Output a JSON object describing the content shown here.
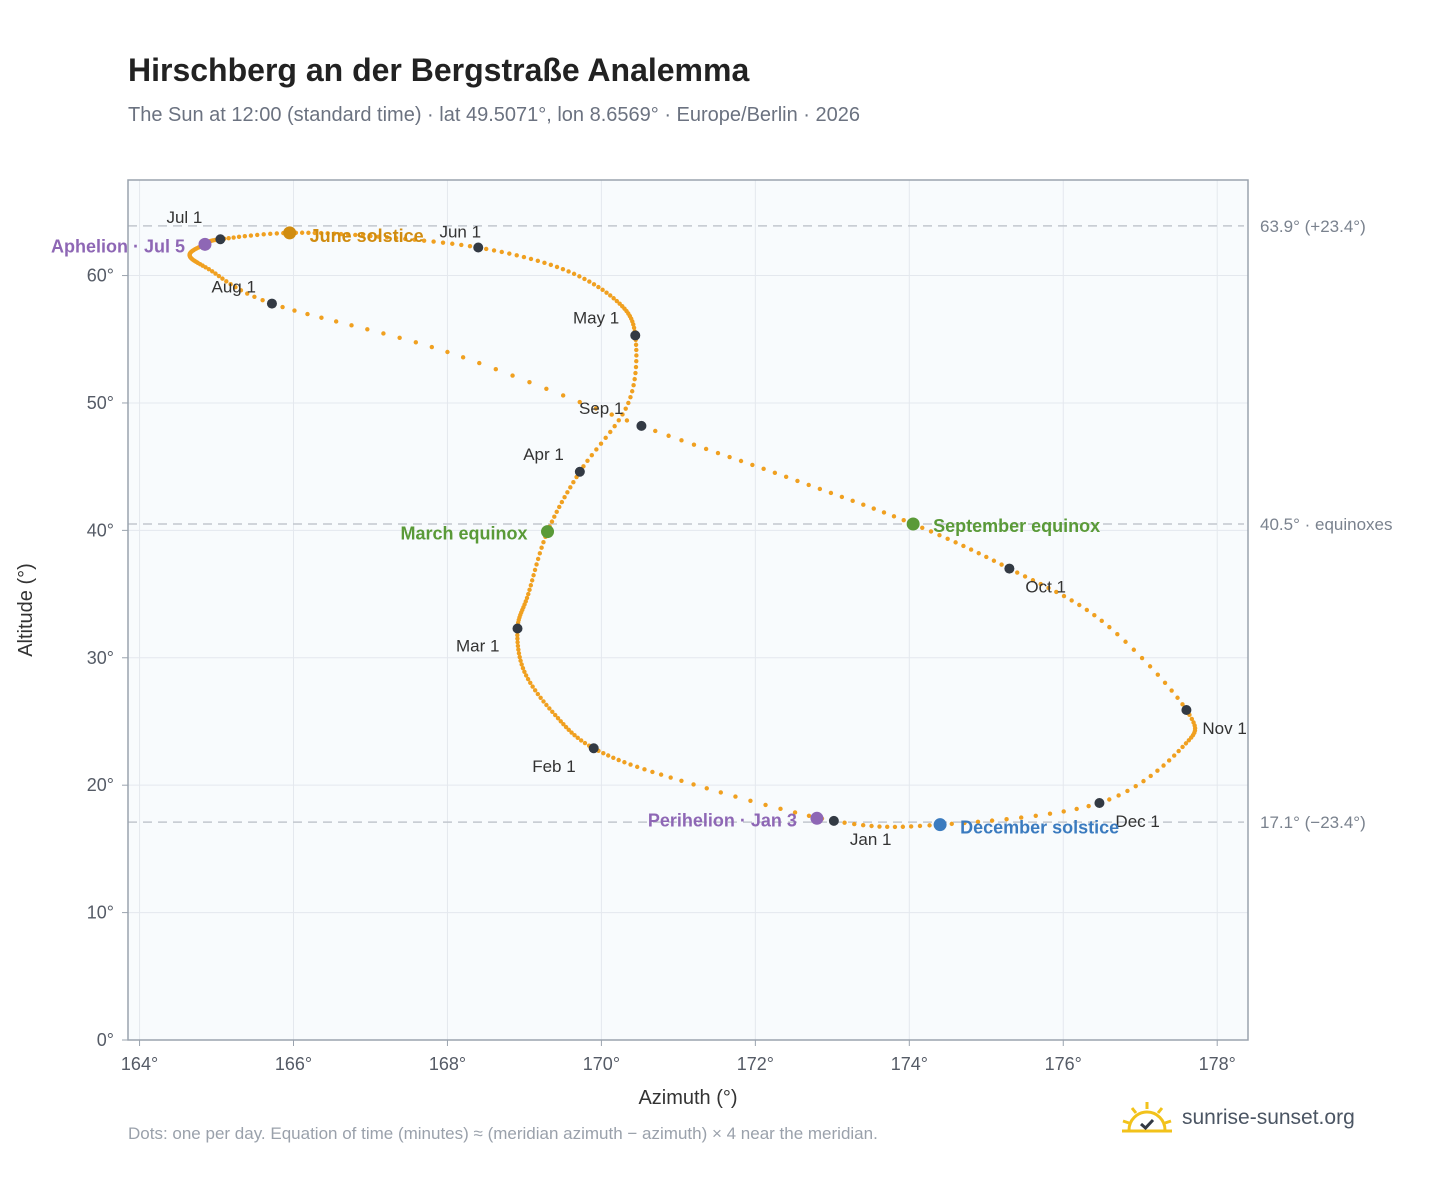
{
  "title": "Hirschberg an der Bergstraße Analemma",
  "subtitle": "The Sun at 12:00 (standard time) · lat 49.5071°, lon 8.6569° · Europe/Berlin · 2026",
  "footnote": "Dots: one per day. Equation of time (minutes) ≈ (meridian azimuth − azimuth) × 4 near the meridian.",
  "brand": {
    "text": "sunrise-sunset.org",
    "icon": "sun-check-icon"
  },
  "colors": {
    "curve": "#f0a020",
    "month_dot": "#333a44",
    "perihelion_aphelion": "#8e67b5",
    "june_solstice": "#d08c10",
    "december_solstice": "#3b7bbf",
    "equinox": "#5a9a38",
    "plot_bg": "#f8fbfd",
    "grid": "#e4e8ee",
    "reference_line": "#c2c7ce"
  },
  "chart_data": {
    "type": "scatter",
    "title": "Hirschberg an der Bergstraße Analemma",
    "xlabel": "Azimuth (°)",
    "ylabel": "Altitude (°)",
    "xlim": [
      163.85,
      178.4
    ],
    "ylim": [
      0,
      67.5
    ],
    "x_ticks": [
      164,
      166,
      168,
      170,
      172,
      174,
      176,
      178
    ],
    "x_tick_labels": [
      "164°",
      "166°",
      "168°",
      "170°",
      "172°",
      "174°",
      "176°",
      "178°"
    ],
    "y_ticks": [
      0,
      10,
      20,
      30,
      40,
      50,
      60
    ],
    "y_tick_labels": [
      "0°",
      "10°",
      "20°",
      "30°",
      "40°",
      "50°",
      "60°"
    ],
    "grid": true,
    "curve_points": [
      [
        173.02,
        17.2
      ],
      [
        170.9,
        20.6
      ],
      [
        169.9,
        22.9
      ],
      [
        169.4,
        25.5
      ],
      [
        169.0,
        28.9
      ],
      [
        168.91,
        32.3
      ],
      [
        169.05,
        35.0
      ],
      [
        169.3,
        39.9
      ],
      [
        169.72,
        44.6
      ],
      [
        170.35,
        50.0
      ],
      [
        170.44,
        55.3
      ],
      [
        170.2,
        58.0
      ],
      [
        169.5,
        60.5
      ],
      [
        168.4,
        62.2
      ],
      [
        167.0,
        63.1
      ],
      [
        165.95,
        63.35
      ],
      [
        165.05,
        62.85
      ],
      [
        164.85,
        62.45
      ],
      [
        164.65,
        61.6
      ],
      [
        164.9,
        60.5
      ],
      [
        165.72,
        57.8
      ],
      [
        168.0,
        54.0
      ],
      [
        170.52,
        48.2
      ],
      [
        172.4,
        44.2
      ],
      [
        174.05,
        40.5
      ],
      [
        175.3,
        37.0
      ],
      [
        176.5,
        32.9
      ],
      [
        177.6,
        25.9
      ],
      [
        177.55,
        23.0
      ],
      [
        176.47,
        18.6
      ],
      [
        174.4,
        16.9
      ],
      [
        173.02,
        17.2
      ]
    ],
    "months": [
      {
        "label": "Jan 1",
        "azimuth": 173.02,
        "altitude": 17.2
      },
      {
        "label": "Feb 1",
        "azimuth": 169.9,
        "altitude": 22.9
      },
      {
        "label": "Mar 1",
        "azimuth": 168.91,
        "altitude": 32.3
      },
      {
        "label": "Apr 1",
        "azimuth": 169.72,
        "altitude": 44.6
      },
      {
        "label": "May 1",
        "azimuth": 170.44,
        "altitude": 55.3
      },
      {
        "label": "Jun 1",
        "azimuth": 168.4,
        "altitude": 62.2
      },
      {
        "label": "Jul 1",
        "azimuth": 165.05,
        "altitude": 62.85
      },
      {
        "label": "Aug 1",
        "azimuth": 165.72,
        "altitude": 57.8
      },
      {
        "label": "Sep 1",
        "azimuth": 170.52,
        "altitude": 48.2
      },
      {
        "label": "Oct 1",
        "azimuth": 175.3,
        "altitude": 37.0
      },
      {
        "label": "Nov 1",
        "azimuth": 177.6,
        "altitude": 25.9
      },
      {
        "label": "Dec 1",
        "azimuth": 176.47,
        "altitude": 18.6
      }
    ],
    "events": [
      {
        "label": "Perihelion · Jan 3",
        "azimuth": 172.8,
        "altitude": 17.4,
        "color_key": "perihelion_aphelion"
      },
      {
        "label": "March equinox",
        "azimuth": 169.3,
        "altitude": 39.9,
        "color_key": "equinox"
      },
      {
        "label": "June solstice",
        "azimuth": 165.95,
        "altitude": 63.35,
        "color_key": "june_solstice"
      },
      {
        "label": "Aphelion · Jul 5",
        "azimuth": 164.85,
        "altitude": 62.45,
        "color_key": "perihelion_aphelion"
      },
      {
        "label": "September equinox",
        "azimuth": 174.05,
        "altitude": 40.5,
        "color_key": "equinox"
      },
      {
        "label": "December solstice",
        "azimuth": 174.4,
        "altitude": 16.9,
        "color_key": "december_solstice"
      }
    ],
    "reference_lines": [
      {
        "altitude": 63.9,
        "label": "63.9° (+23.4°)"
      },
      {
        "altitude": 40.5,
        "label": "40.5° · equinoxes"
      },
      {
        "altitude": 17.1,
        "label": "17.1° (−23.4°)"
      }
    ]
  }
}
